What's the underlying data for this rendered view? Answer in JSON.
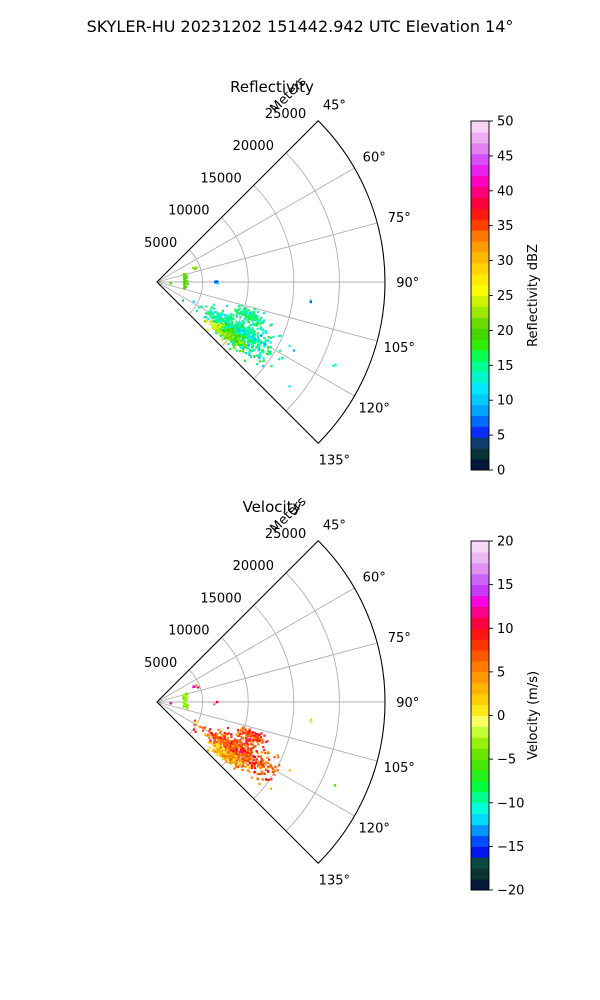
{
  "figure": {
    "suptitle": "SKYLER-HU  20231202  151442.942 UTC Elevation 14°"
  },
  "colors": {
    "grid": "#b0b0b0",
    "frame": "#000000",
    "background": "#ffffff"
  },
  "chart_data": [
    {
      "type": "heatmap",
      "subtype": "polar-sector (PPI)",
      "title": "Reflectivity",
      "radial_label": "Meters",
      "radial_ticks": [
        5000,
        10000,
        15000,
        20000,
        25000
      ],
      "radial_tick_labels": [
        "5000",
        "10000",
        "15000",
        "20000",
        "25000"
      ],
      "rlim": [
        0,
        25000
      ],
      "theta_ticks": [
        45,
        60,
        75,
        90,
        105,
        120,
        135
      ],
      "theta_tick_labels": [
        "45°",
        "60°",
        "75°",
        "90°",
        "105°",
        "120°",
        "135°"
      ],
      "theta_range_deg": [
        45,
        135
      ],
      "grid": true,
      "colorbar": {
        "label": "Reflectivity dBZ",
        "range": [
          0,
          50
        ],
        "ticks": [
          0,
          5,
          10,
          15,
          20,
          25,
          30,
          35,
          40,
          45,
          50
        ],
        "tick_labels": [
          "0",
          "5",
          "10",
          "15",
          "20",
          "25",
          "30",
          "35",
          "40",
          "45",
          "50"
        ],
        "segments": 32,
        "colormap": "pyart_NWSRef-like"
      },
      "echoes": [
        {
          "kind": "arc",
          "r_range": [
            2900,
            3400
          ],
          "theta_range": [
            74,
            103
          ],
          "value": 20
        },
        {
          "kind": "cluster",
          "r": 4500,
          "theta": 69,
          "spread_r": 250,
          "spread_t": 3,
          "count": 6,
          "value": 22
        },
        {
          "kind": "cluster",
          "r": 6500,
          "theta": 90,
          "spread_r": 250,
          "spread_t": 1.5,
          "count": 8,
          "value": 10
        },
        {
          "kind": "cluster",
          "r": 10500,
          "theta": 121,
          "spread_r": 3500,
          "spread_t": 6,
          "count": 520,
          "value": 14
        },
        {
          "kind": "cluster",
          "r": 9000,
          "theta": 127,
          "spread_r": 1500,
          "spread_t": 3,
          "count": 120,
          "value": 24
        },
        {
          "kind": "cluster",
          "r": 10500,
          "theta": 126,
          "spread_r": 1500,
          "spread_t": 3,
          "count": 110,
          "value": 19
        },
        {
          "kind": "cluster",
          "r": 11000,
          "theta": 110,
          "spread_r": 1200,
          "spread_t": 3,
          "count": 110,
          "value": 15
        },
        {
          "kind": "cluster",
          "r": 17000,
          "theta": 97,
          "spread_r": 100,
          "spread_t": 0.4,
          "count": 2,
          "value": 12
        },
        {
          "kind": "cluster",
          "r": 21500,
          "theta": 115,
          "spread_r": 100,
          "spread_t": 0.4,
          "count": 2,
          "value": 14
        },
        {
          "kind": "cluster",
          "r": 1500,
          "theta": 95,
          "spread_r": 100,
          "spread_t": 1,
          "count": 3,
          "value": 18
        }
      ]
    },
    {
      "type": "heatmap",
      "subtype": "polar-sector (PPI)",
      "title": "Velocity",
      "radial_label": "Meters",
      "radial_ticks": [
        5000,
        10000,
        15000,
        20000,
        25000
      ],
      "radial_tick_labels": [
        "5000",
        "10000",
        "15000",
        "20000",
        "25000"
      ],
      "rlim": [
        0,
        25000
      ],
      "theta_ticks": [
        45,
        60,
        75,
        90,
        105,
        120,
        135
      ],
      "theta_tick_labels": [
        "45°",
        "60°",
        "75°",
        "90°",
        "105°",
        "120°",
        "135°"
      ],
      "theta_range_deg": [
        45,
        135
      ],
      "grid": true,
      "colorbar": {
        "label": "Velocity (m/s)",
        "range": [
          -20,
          20
        ],
        "ticks": [
          -20,
          -15,
          -10,
          -5,
          0,
          5,
          10,
          15,
          20
        ],
        "tick_labels": [
          "−20",
          "−15",
          "−10",
          "−5",
          "0",
          "5",
          "10",
          "15",
          "20"
        ],
        "segments": 32,
        "colormap": "pyart_BuDRd-like"
      },
      "echoes": [
        {
          "kind": "arc",
          "r_range": [
            2900,
            3400
          ],
          "theta_range": [
            74,
            103
          ],
          "value": -3
        },
        {
          "kind": "cluster",
          "r": 4500,
          "theta": 69,
          "spread_r": 250,
          "spread_t": 3,
          "count": 5,
          "value": 9
        },
        {
          "kind": "cluster",
          "r": 6500,
          "theta": 90,
          "spread_r": 250,
          "spread_t": 1.5,
          "count": 8,
          "value": 15
        },
        {
          "kind": "cluster",
          "r": 10500,
          "theta": 121,
          "spread_r": 3500,
          "spread_t": 6,
          "count": 480,
          "value": 7
        },
        {
          "kind": "cluster",
          "r": 9500,
          "theta": 127,
          "spread_r": 1500,
          "spread_t": 3,
          "count": 160,
          "value": 3
        },
        {
          "kind": "cluster",
          "r": 11000,
          "theta": 110,
          "spread_r": 1200,
          "spread_t": 3,
          "count": 110,
          "value": 8
        },
        {
          "kind": "cluster",
          "r": 17000,
          "theta": 97,
          "spread_r": 100,
          "spread_t": 0.4,
          "count": 2,
          "value": -2
        },
        {
          "kind": "cluster",
          "r": 21500,
          "theta": 115,
          "spread_r": 100,
          "spread_t": 0.4,
          "count": 2,
          "value": -3
        },
        {
          "kind": "cluster",
          "r": 1500,
          "theta": 95,
          "spread_r": 100,
          "spread_t": 1,
          "count": 3,
          "value": 12
        }
      ]
    }
  ]
}
